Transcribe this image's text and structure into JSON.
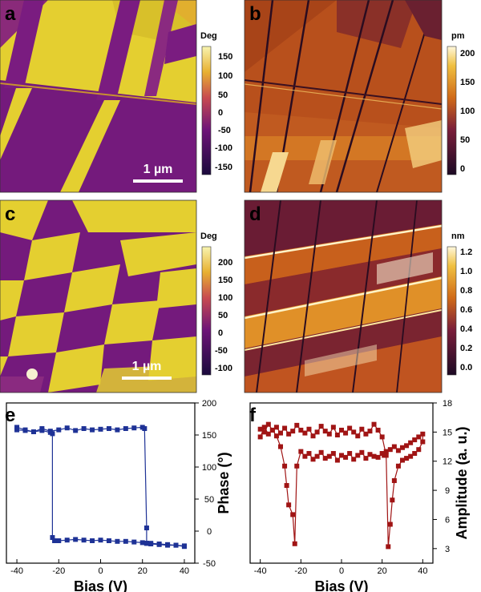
{
  "panels": {
    "a": {
      "letter": "a",
      "scale_bar": "1 µm",
      "colorbar": {
        "unit": "Deg",
        "ticks": [
          "150",
          "100",
          "50",
          "0",
          "-50",
          "-100",
          "-150"
        ]
      }
    },
    "b": {
      "letter": "b",
      "colorbar": {
        "unit": "pm",
        "ticks": [
          "200",
          "150",
          "100",
          "50",
          "0"
        ]
      }
    },
    "c": {
      "letter": "c",
      "scale_bar": "1 µm",
      "colorbar": {
        "unit": "Deg",
        "ticks": [
          "200",
          "150",
          "100",
          "50",
          "0",
          "-50",
          "-100"
        ]
      }
    },
    "d": {
      "letter": "d",
      "colorbar": {
        "unit": "nm",
        "ticks": [
          "1.2",
          "1.0",
          "0.8",
          "0.6",
          "0.4",
          "0.2",
          "0.0"
        ]
      }
    },
    "e": {
      "letter": "e"
    },
    "f": {
      "letter": "f"
    }
  },
  "colors": {
    "phase_low": "#1a0a3c",
    "phase_mid": "#b0386a",
    "phase_high": "#f5f0a0",
    "height_low": "#1c0a24",
    "height_mid": "#c86418",
    "height_high": "#fff8dc",
    "domain_yellow": "#e6d232",
    "domain_purple": "#6e1478",
    "e_series": "#1e3296",
    "f_series": "#a01414"
  },
  "chart_data": [
    {
      "panel": "e",
      "type": "scatter",
      "xlabel": "Bias (V)",
      "ylabel": "Phase (°)",
      "xlim": [
        -45,
        45
      ],
      "ylim": [
        -50,
        200
      ],
      "x_ticks": [
        -40,
        -20,
        0,
        20,
        40
      ],
      "y_ticks": [
        -50,
        0,
        50,
        100,
        150,
        200
      ],
      "y_axis_side": "right",
      "series": [
        {
          "x": [
            -40,
            -36,
            -32,
            -28,
            -24,
            -23,
            -23,
            -22,
            -20,
            -16,
            -12,
            -8,
            -4,
            0,
            4,
            8,
            12,
            16,
            20,
            22,
            22,
            24,
            28,
            32,
            36,
            40,
            40,
            36,
            32,
            28,
            24,
            22,
            22,
            21,
            20,
            16,
            12,
            8,
            4,
            0,
            -4,
            -8,
            -12,
            -16,
            -20,
            -24,
            -28,
            -32,
            -36,
            -40
          ],
          "y": [
            162,
            158,
            155,
            157,
            154,
            152,
            -10,
            -15,
            -15,
            -14,
            -13,
            -14,
            -15,
            -14,
            -15,
            -16,
            -16,
            -17,
            -18,
            -19,
            -19,
            -20,
            -21,
            -22,
            -22,
            -23,
            -24,
            -22,
            -21,
            -20,
            -19,
            -19,
            5,
            160,
            162,
            161,
            160,
            158,
            160,
            159,
            158,
            160,
            157,
            161,
            158,
            156,
            160,
            155,
            157,
            158
          ]
        }
      ]
    },
    {
      "panel": "f",
      "type": "scatter",
      "xlabel": "Bias (V)",
      "ylabel": "Amplitude (a. u.)",
      "xlim": [
        -45,
        45
      ],
      "ylim": [
        1.5,
        18
      ],
      "x_ticks": [
        -40,
        -20,
        0,
        20,
        40
      ],
      "y_ticks": [
        3,
        6,
        9,
        12,
        15,
        18
      ],
      "y_axis_side": "right",
      "series": [
        {
          "x": [
            -40,
            -38,
            -36,
            -34,
            -32,
            -30,
            -28,
            -27,
            -26,
            -24,
            -23,
            -22,
            -20,
            -18,
            -16,
            -14,
            -12,
            -10,
            -8,
            -6,
            -4,
            -2,
            0,
            2,
            4,
            6,
            8,
            10,
            12,
            14,
            16,
            18,
            20,
            21,
            22,
            24,
            26,
            28,
            30,
            32,
            34,
            36,
            38,
            40,
            40,
            38,
            36,
            34,
            32,
            30,
            28,
            26,
            25,
            24,
            23,
            22,
            20,
            18,
            16,
            14,
            12,
            10,
            8,
            6,
            4,
            2,
            0,
            -2,
            -4,
            -6,
            -8,
            -10,
            -12,
            -14,
            -16,
            -18,
            -20,
            -22,
            -24,
            -26,
            -28,
            -30,
            -32,
            -34,
            -36,
            -38,
            -40
          ],
          "y": [
            14.5,
            15.5,
            14.8,
            15.2,
            14.6,
            13.5,
            11.5,
            9.5,
            7.5,
            6.5,
            3.5,
            11.5,
            13,
            12.5,
            12.8,
            12.2,
            12.5,
            12.9,
            12.3,
            12.5,
            12.8,
            12.1,
            12.6,
            12.4,
            12.8,
            12.2,
            12.6,
            12.9,
            12.3,
            12.7,
            12.5,
            12.4,
            12.8,
            12.6,
            13,
            13.2,
            13.5,
            13.1,
            13.4,
            13.6,
            13.9,
            14.2,
            14.5,
            14.8,
            14,
            13.2,
            12.8,
            12.5,
            12.3,
            12.1,
            11.5,
            10,
            8,
            5.5,
            3.2,
            12.6,
            14.5,
            15.2,
            15.8,
            15.1,
            14.8,
            15.3,
            14.6,
            15,
            15.4,
            14.9,
            15.2,
            14.7,
            15.5,
            14.8,
            15.1,
            15.6,
            15,
            14.6,
            15.3,
            14.9,
            15.2,
            15.7,
            15.1,
            14.8,
            15.4,
            14.9,
            15.5,
            15.2,
            15.8,
            15,
            15.3
          ]
        }
      ]
    }
  ]
}
